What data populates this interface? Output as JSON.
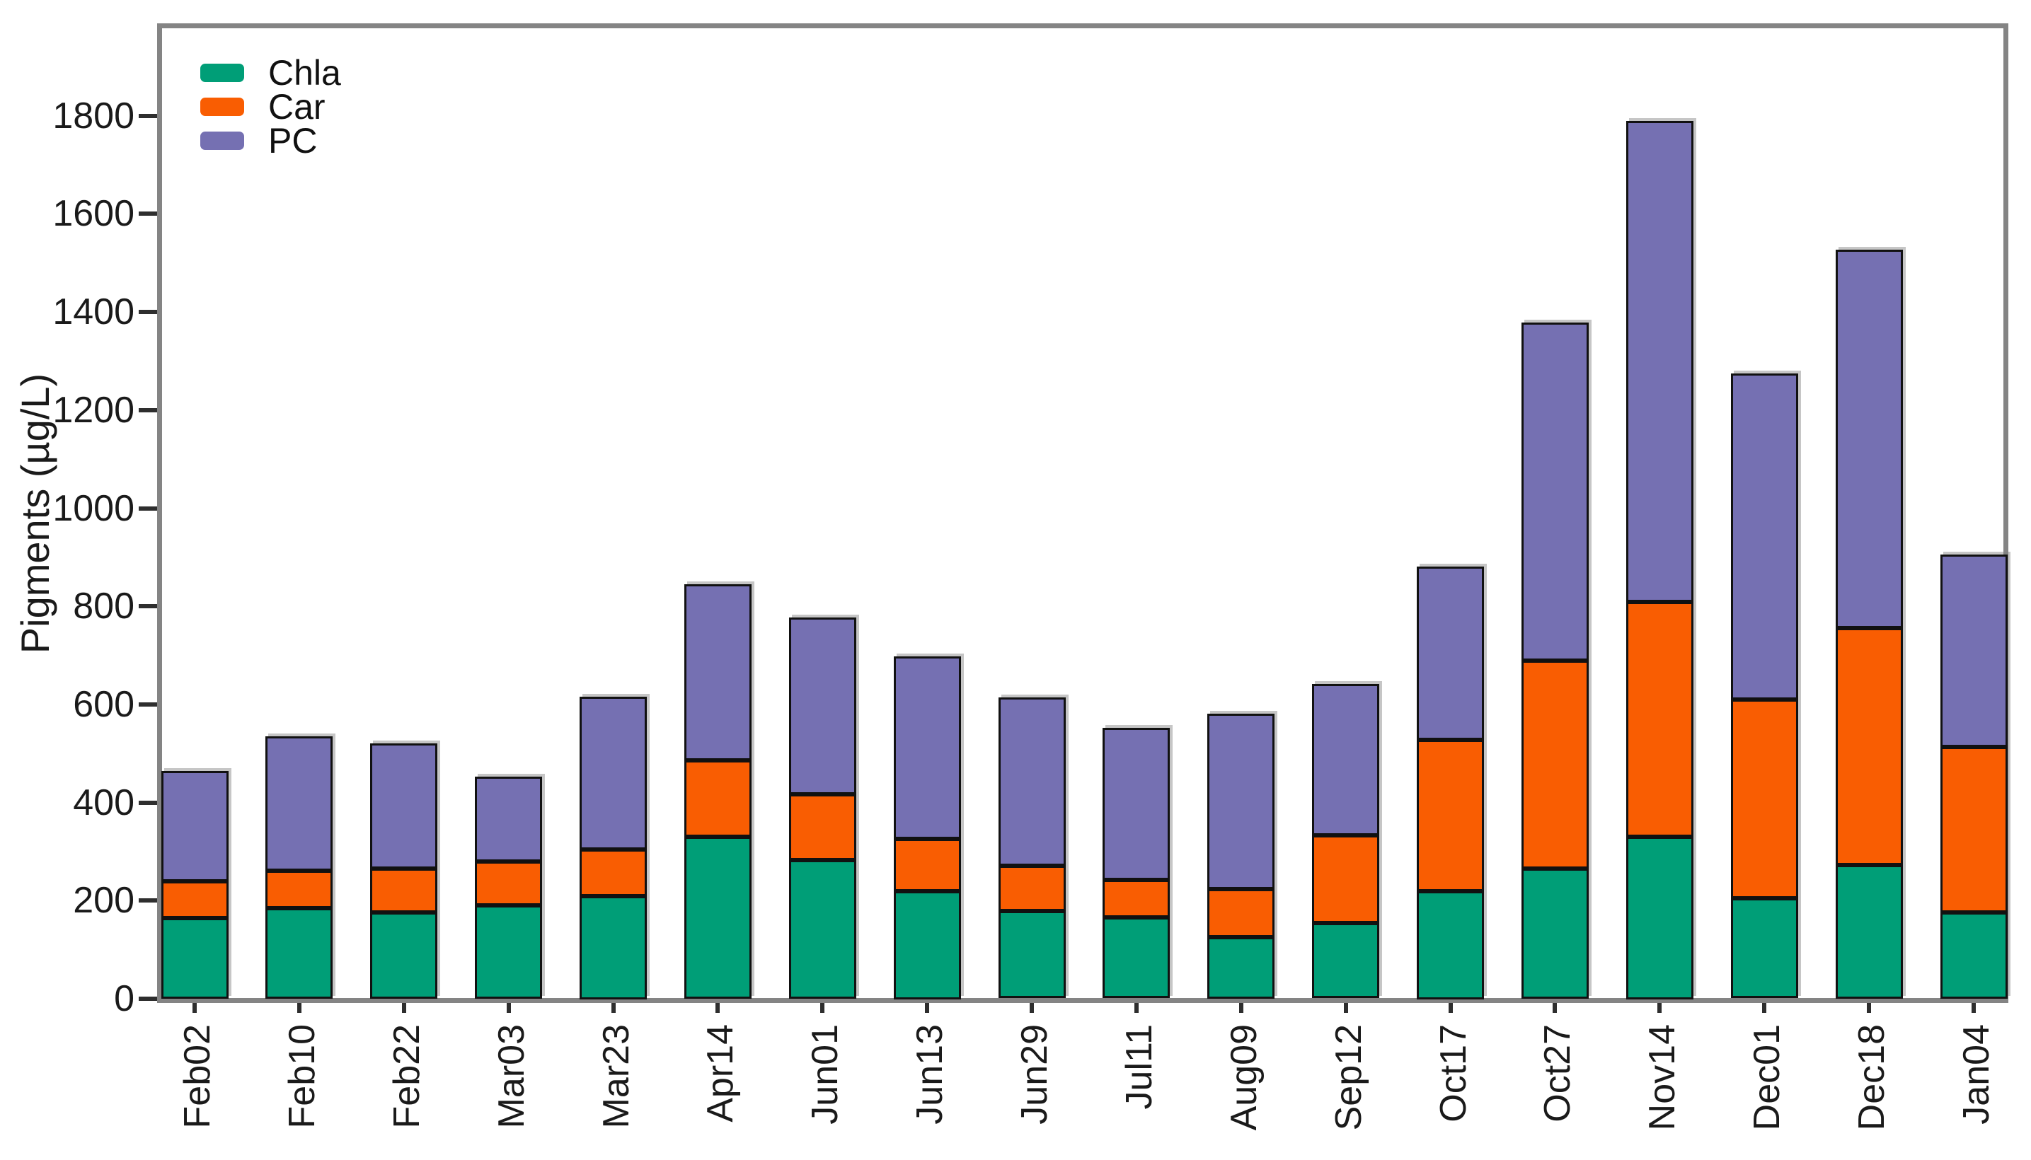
{
  "chart_data": {
    "type": "bar",
    "stacked": true,
    "title": "",
    "xlabel": "",
    "ylabel": "Pigments (µg/L)",
    "ylim": [
      0,
      1995
    ],
    "yticks": [
      0,
      200,
      400,
      600,
      800,
      1000,
      1200,
      1400,
      1600,
      1800
    ],
    "grid": false,
    "legend_position": "top-left",
    "categories": [
      "Feb02",
      "Feb10",
      "Feb22",
      "Mar03",
      "Mar23",
      "Apr14",
      "Jun01",
      "Jun13",
      "Jun29",
      "Jul11",
      "Aug09",
      "Sep12",
      "Oct17",
      "Oct27",
      "Nov14",
      "Dec01",
      "Dec18",
      "Jan04"
    ],
    "series": [
      {
        "name": "Chla",
        "color": "#009E77",
        "values": [
          165,
          184,
          176,
          190,
          210,
          330,
          283,
          220,
          178,
          165,
          125,
          153,
          220,
          265,
          331,
          204,
          272,
          176
        ]
      },
      {
        "name": "Car",
        "color": "#F95D02",
        "values": [
          75,
          77,
          89,
          90,
          95,
          156,
          134,
          106,
          93,
          77,
          98,
          179,
          308,
          424,
          479,
          405,
          483,
          337
        ]
      },
      {
        "name": "PC",
        "color": "#7570B2",
        "values": [
          225,
          274,
          255,
          173,
          311,
          359,
          360,
          372,
          343,
          310,
          358,
          309,
          353,
          689,
          980,
          665,
          772,
          392
        ]
      }
    ],
    "stack_totals": [
      465,
      535,
      520,
      453,
      616,
      845,
      777,
      698,
      614,
      552,
      581,
      641,
      881,
      1378,
      1790,
      1274,
      1527,
      905
    ]
  }
}
